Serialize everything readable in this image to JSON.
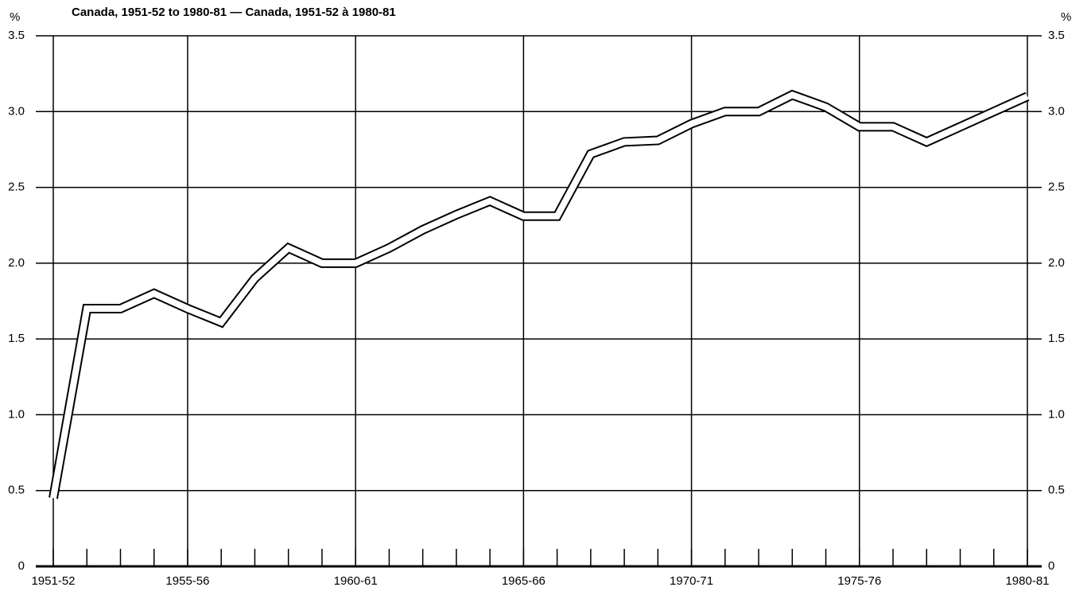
{
  "chart_data": {
    "type": "line",
    "title": "Canada, 1951-52 to 1980-81 — Canada, 1951-52 à 1980-81",
    "y_label": "%",
    "categories": [
      "1951-52",
      null,
      null,
      null,
      "1955-56",
      null,
      null,
      null,
      null,
      "1960-61",
      null,
      null,
      null,
      null,
      "1965-66",
      null,
      null,
      null,
      null,
      "1970-71",
      null,
      null,
      null,
      null,
      "1975-76",
      null,
      null,
      null,
      null,
      "1980-81"
    ],
    "series": [
      {
        "name": null,
        "color": "#000000",
        "values": [
          0.45,
          1.7,
          1.7,
          1.8,
          1.7,
          1.61,
          1.9,
          2.1,
          2.0,
          2.0,
          2.1,
          2.22,
          2.32,
          2.41,
          2.31,
          2.31,
          2.72,
          2.8,
          2.81,
          2.92,
          3.0,
          3.0,
          3.11,
          3.03,
          2.9,
          2.9,
          2.8,
          2.9,
          3.0,
          3.1
        ]
      }
    ],
    "ylim": [
      0,
      3.5
    ],
    "yticks": [
      0,
      0.5,
      {
        "value": 1,
        "label": "1.0"
      },
      1.5,
      {
        "value": 2,
        "label": "2.0"
      },
      2.5,
      {
        "value": 3,
        "label": "3.0"
      },
      3.5
    ],
    "grid": true,
    "second_axis_mirrors_y": true
  }
}
